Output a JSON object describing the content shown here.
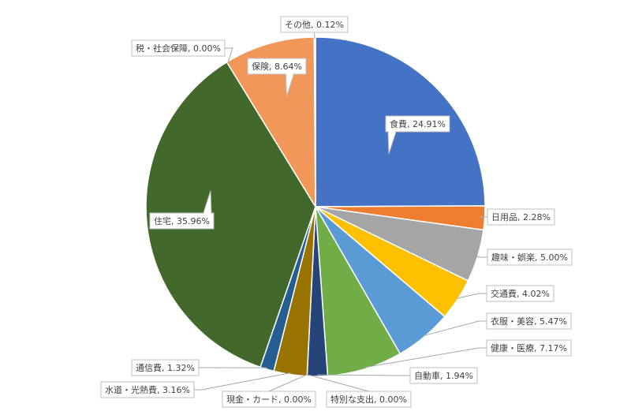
{
  "chart_data": {
    "type": "pie",
    "title": "",
    "start_angle_deg": 0,
    "direction": "clockwise",
    "label_format": "{name}, {value}%",
    "slices": [
      {
        "name": "食費",
        "value": 24.91,
        "color": "#4472C4"
      },
      {
        "name": "日用品",
        "value": 2.28,
        "color": "#ED7D31"
      },
      {
        "name": "趣味・娯楽",
        "value": 5.0,
        "color": "#A5A5A5"
      },
      {
        "name": "交通費",
        "value": 4.02,
        "color": "#FFC000"
      },
      {
        "name": "衣服・美容",
        "value": 5.47,
        "color": "#5B9BD5"
      },
      {
        "name": "健康・医療",
        "value": 7.17,
        "color": "#70AD47"
      },
      {
        "name": "自動車",
        "value": 1.94,
        "color": "#264478"
      },
      {
        "name": "特別な支出",
        "value": 0.0,
        "color": "#9E480E"
      },
      {
        "name": "現金・カード",
        "value": 0.0,
        "color": "#636363"
      },
      {
        "name": "水道・光熱費",
        "value": 3.16,
        "color": "#997300"
      },
      {
        "name": "通信費",
        "value": 1.32,
        "color": "#255E91"
      },
      {
        "name": "住宅",
        "value": 35.96,
        "color": "#43682B"
      },
      {
        "name": "税・社会保障",
        "value": 0.0,
        "color": "#698ED0"
      },
      {
        "name": "保険",
        "value": 8.64,
        "color": "#F1975A"
      },
      {
        "name": "その他",
        "value": 0.12,
        "color": "#B7B7B7"
      }
    ]
  }
}
